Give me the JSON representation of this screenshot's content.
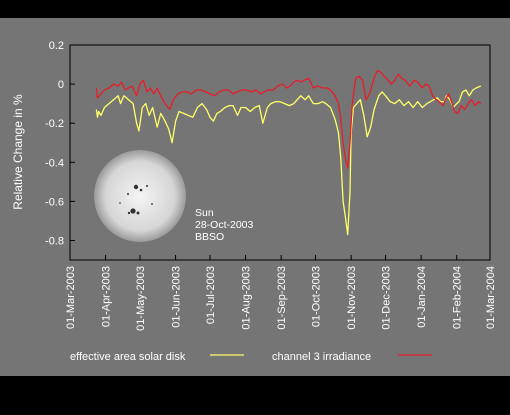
{
  "chart_data": {
    "type": "line",
    "ylabel": "Relative Change in %",
    "ylim": [
      -0.9,
      0.2
    ],
    "yticks": [
      0.2,
      0,
      -0.2,
      -0.4,
      -0.6,
      -0.8
    ],
    "ytick_labels": [
      "0.2",
      "0",
      "-0.2",
      "-0.4",
      "-0.6",
      "-0.8"
    ],
    "xlim": [
      "2003-03-01",
      "2004-03-01"
    ],
    "xticks": [
      "2003-03-01",
      "2003-04-01",
      "2003-05-01",
      "2003-06-01",
      "2003-07-01",
      "2003-08-01",
      "2003-09-01",
      "2003-10-01",
      "2003-11-01",
      "2003-12-01",
      "2004-01-01",
      "2004-02-01",
      "2004-03-01"
    ],
    "xtick_labels": [
      "01-Mar-2003",
      "01-Apr-2003",
      "01-May-2003",
      "01-Jun-2003",
      "01-Jul-2003",
      "01-Aug-2003",
      "01-Sep-2003",
      "01-Oct-2003",
      "01-Nov-2003",
      "01-Dec-2003",
      "01-Jan-2004",
      "01-Feb-2004",
      "01-Mar-2004"
    ],
    "grid": false,
    "legend_position": "bottom",
    "series": [
      {
        "name": "effective area solar disk",
        "color": "#ffff66",
        "points": [
          [
            "2003-03-24",
            -0.13
          ],
          [
            "2003-03-25",
            -0.17
          ],
          [
            "2003-03-26",
            -0.14
          ],
          [
            "2003-03-28",
            -0.16
          ],
          [
            "2003-03-31",
            -0.12
          ],
          [
            "2003-04-04",
            -0.1
          ],
          [
            "2003-04-08",
            -0.08
          ],
          [
            "2003-04-12",
            -0.06
          ],
          [
            "2003-04-14",
            -0.1
          ],
          [
            "2003-04-17",
            -0.06
          ],
          [
            "2003-04-21",
            -0.08
          ],
          [
            "2003-04-25",
            -0.1
          ],
          [
            "2003-04-28",
            -0.2
          ],
          [
            "2003-04-30",
            -0.24
          ],
          [
            "2003-05-03",
            -0.12
          ],
          [
            "2003-05-06",
            -0.1
          ],
          [
            "2003-05-09",
            -0.16
          ],
          [
            "2003-05-12",
            -0.12
          ],
          [
            "2003-05-16",
            -0.22
          ],
          [
            "2003-05-19",
            -0.15
          ],
          [
            "2003-05-22",
            -0.18
          ],
          [
            "2003-05-26",
            -0.23
          ],
          [
            "2003-05-29",
            -0.3
          ],
          [
            "2003-06-01",
            -0.19
          ],
          [
            "2003-06-04",
            -0.14
          ],
          [
            "2003-06-08",
            -0.15
          ],
          [
            "2003-06-12",
            -0.16
          ],
          [
            "2003-06-16",
            -0.17
          ],
          [
            "2003-06-20",
            -0.12
          ],
          [
            "2003-06-24",
            -0.1
          ],
          [
            "2003-06-28",
            -0.13
          ],
          [
            "2003-07-01",
            -0.17
          ],
          [
            "2003-07-04",
            -0.19
          ],
          [
            "2003-07-07",
            -0.15
          ],
          [
            "2003-07-10",
            -0.14
          ],
          [
            "2003-07-14",
            -0.12
          ],
          [
            "2003-07-18",
            -0.11
          ],
          [
            "2003-07-21",
            -0.11
          ],
          [
            "2003-07-25",
            -0.16
          ],
          [
            "2003-07-28",
            -0.12
          ],
          [
            "2003-08-01",
            -0.12
          ],
          [
            "2003-08-05",
            -0.14
          ],
          [
            "2003-08-09",
            -0.12
          ],
          [
            "2003-08-13",
            -0.11
          ],
          [
            "2003-08-16",
            -0.2
          ],
          [
            "2003-08-20",
            -0.12
          ],
          [
            "2003-08-23",
            -0.1
          ],
          [
            "2003-08-27",
            -0.09
          ],
          [
            "2003-08-31",
            -0.09
          ],
          [
            "2003-09-04",
            -0.1
          ],
          [
            "2003-09-08",
            -0.11
          ],
          [
            "2003-09-12",
            -0.1
          ],
          [
            "2003-09-15",
            -0.08
          ],
          [
            "2003-09-18",
            -0.06
          ],
          [
            "2003-09-22",
            -0.08
          ],
          [
            "2003-09-25",
            -0.06
          ],
          [
            "2003-09-29",
            -0.1
          ],
          [
            "2003-10-03",
            -0.1
          ],
          [
            "2003-10-07",
            -0.09
          ],
          [
            "2003-10-10",
            -0.1
          ],
          [
            "2003-10-14",
            -0.12
          ],
          [
            "2003-10-18",
            -0.18
          ],
          [
            "2003-10-21",
            -0.25
          ],
          [
            "2003-10-23",
            -0.38
          ],
          [
            "2003-10-25",
            -0.6
          ],
          [
            "2003-10-27",
            -0.68
          ],
          [
            "2003-10-29",
            -0.77
          ],
          [
            "2003-10-31",
            -0.55
          ],
          [
            "2003-11-01",
            -0.25
          ],
          [
            "2003-11-03",
            -0.12
          ],
          [
            "2003-11-06",
            -0.1
          ],
          [
            "2003-11-09",
            -0.08
          ],
          [
            "2003-11-12",
            -0.16
          ],
          [
            "2003-11-15",
            -0.27
          ],
          [
            "2003-11-18",
            -0.22
          ],
          [
            "2003-11-21",
            -0.13
          ],
          [
            "2003-11-25",
            -0.06
          ],
          [
            "2003-11-28",
            -0.04
          ],
          [
            "2003-12-01",
            -0.06
          ],
          [
            "2003-12-05",
            -0.09
          ],
          [
            "2003-12-09",
            -0.1
          ],
          [
            "2003-12-13",
            -0.08
          ],
          [
            "2003-12-17",
            -0.11
          ],
          [
            "2003-12-21",
            -0.09
          ],
          [
            "2003-12-25",
            -0.12
          ],
          [
            "2003-12-29",
            -0.09
          ],
          [
            "2004-01-02",
            -0.12
          ],
          [
            "2004-01-06",
            -0.1
          ],
          [
            "2004-01-09",
            -0.09
          ],
          [
            "2004-01-12",
            -0.08
          ],
          [
            "2004-01-15",
            -0.07
          ],
          [
            "2004-01-18",
            -0.09
          ],
          [
            "2004-01-21",
            -0.09
          ],
          [
            "2004-01-23",
            -0.06
          ],
          [
            "2004-01-26",
            -0.08
          ],
          [
            "2004-01-29",
            -0.12
          ],
          [
            "2004-02-01",
            -0.1
          ],
          [
            "2004-02-03",
            -0.09
          ],
          [
            "2004-02-06",
            -0.04
          ],
          [
            "2004-02-09",
            -0.03
          ],
          [
            "2004-02-12",
            -0.06
          ],
          [
            "2004-02-15",
            -0.03
          ],
          [
            "2004-02-18",
            -0.02
          ],
          [
            "2004-02-22",
            -0.01
          ]
        ]
      },
      {
        "name": "channel 3 irradiance",
        "color": "#e81e2a",
        "points": [
          [
            "2003-03-24",
            -0.02
          ],
          [
            "2003-03-25",
            -0.07
          ],
          [
            "2003-03-28",
            -0.05
          ],
          [
            "2003-03-31",
            -0.03
          ],
          [
            "2003-04-04",
            -0.02
          ],
          [
            "2003-04-08",
            0.0
          ],
          [
            "2003-04-12",
            -0.01
          ],
          [
            "2003-04-15",
            0.01
          ],
          [
            "2003-04-18",
            -0.03
          ],
          [
            "2003-04-21",
            -0.02
          ],
          [
            "2003-04-24",
            -0.01
          ],
          [
            "2003-04-28",
            -0.06
          ],
          [
            "2003-05-01",
            0.0
          ],
          [
            "2003-05-04",
            0.02
          ],
          [
            "2003-05-07",
            -0.04
          ],
          [
            "2003-05-10",
            -0.02
          ],
          [
            "2003-05-13",
            -0.05
          ],
          [
            "2003-05-16",
            -0.02
          ],
          [
            "2003-05-19",
            -0.06
          ],
          [
            "2003-05-23",
            -0.1
          ],
          [
            "2003-05-27",
            -0.13
          ],
          [
            "2003-05-30",
            -0.08
          ],
          [
            "2003-06-03",
            -0.05
          ],
          [
            "2003-06-07",
            -0.04
          ],
          [
            "2003-06-11",
            -0.04
          ],
          [
            "2003-06-15",
            -0.05
          ],
          [
            "2003-06-19",
            -0.03
          ],
          [
            "2003-06-23",
            -0.03
          ],
          [
            "2003-06-27",
            -0.04
          ],
          [
            "2003-07-01",
            -0.05
          ],
          [
            "2003-07-05",
            -0.06
          ],
          [
            "2003-07-09",
            -0.04
          ],
          [
            "2003-07-13",
            -0.03
          ],
          [
            "2003-07-17",
            -0.03
          ],
          [
            "2003-07-21",
            -0.05
          ],
          [
            "2003-07-25",
            -0.04
          ],
          [
            "2003-07-29",
            -0.03
          ],
          [
            "2003-08-02",
            -0.03
          ],
          [
            "2003-08-06",
            -0.04
          ],
          [
            "2003-08-10",
            -0.03
          ],
          [
            "2003-08-14",
            -0.05
          ],
          [
            "2003-08-17",
            -0.04
          ],
          [
            "2003-08-21",
            -0.03
          ],
          [
            "2003-08-25",
            -0.03
          ],
          [
            "2003-08-29",
            -0.01
          ],
          [
            "2003-09-02",
            0.0
          ],
          [
            "2003-09-06",
            -0.02
          ],
          [
            "2003-09-09",
            -0.01
          ],
          [
            "2003-09-12",
            0.01
          ],
          [
            "2003-09-15",
            0.02
          ],
          [
            "2003-09-18",
            0.01
          ],
          [
            "2003-09-21",
            0.02
          ],
          [
            "2003-09-25",
            0.03
          ],
          [
            "2003-09-29",
            -0.02
          ],
          [
            "2003-10-03",
            -0.01
          ],
          [
            "2003-10-07",
            -0.02
          ],
          [
            "2003-10-11",
            -0.02
          ],
          [
            "2003-10-14",
            -0.03
          ],
          [
            "2003-10-18",
            -0.06
          ],
          [
            "2003-10-21",
            -0.1
          ],
          [
            "2003-10-23",
            -0.18
          ],
          [
            "2003-10-25",
            -0.3
          ],
          [
            "2003-10-27",
            -0.38
          ],
          [
            "2003-10-29",
            -0.43
          ],
          [
            "2003-10-31",
            -0.3
          ],
          [
            "2003-11-02",
            -0.1
          ],
          [
            "2003-11-05",
            0.03
          ],
          [
            "2003-11-08",
            0.04
          ],
          [
            "2003-11-11",
            0.02
          ],
          [
            "2003-11-14",
            -0.08
          ],
          [
            "2003-11-17",
            -0.05
          ],
          [
            "2003-11-21",
            0.03
          ],
          [
            "2003-11-24",
            0.07
          ],
          [
            "2003-11-27",
            0.06
          ],
          [
            "2003-11-30",
            0.04
          ],
          [
            "2003-12-03",
            0.02
          ],
          [
            "2003-12-06",
            0.0
          ],
          [
            "2003-12-09",
            0.02
          ],
          [
            "2003-12-12",
            0.05
          ],
          [
            "2003-12-15",
            0.03
          ],
          [
            "2003-12-18",
            0.02
          ],
          [
            "2003-12-22",
            -0.01
          ],
          [
            "2003-12-26",
            0.02
          ],
          [
            "2003-12-29",
            0.01
          ],
          [
            "2004-01-02",
            -0.02
          ],
          [
            "2004-01-05",
            0.0
          ],
          [
            "2004-01-08",
            -0.01
          ],
          [
            "2004-01-11",
            -0.06
          ],
          [
            "2004-01-14",
            -0.08
          ],
          [
            "2004-01-17",
            -0.09
          ],
          [
            "2004-01-20",
            -0.11
          ],
          [
            "2004-01-22",
            -0.08
          ],
          [
            "2004-01-25",
            -0.05
          ],
          [
            "2004-01-28",
            -0.1
          ],
          [
            "2004-01-30",
            -0.14
          ],
          [
            "2004-02-02",
            -0.15
          ],
          [
            "2004-02-05",
            -0.11
          ],
          [
            "2004-02-08",
            -0.13
          ],
          [
            "2004-02-11",
            -0.1
          ],
          [
            "2004-02-14",
            -0.08
          ],
          [
            "2004-02-17",
            -0.11
          ],
          [
            "2004-02-20",
            -0.09
          ],
          [
            "2004-02-22",
            -0.1
          ]
        ]
      }
    ],
    "inset": {
      "lines": [
        "Sun",
        "28-Oct-2003",
        "BBSO"
      ]
    }
  },
  "colors": {
    "background": "#000000",
    "plot_area": "#757575",
    "effective_area": "#ffff66",
    "channel3": "#e81e2a"
  }
}
